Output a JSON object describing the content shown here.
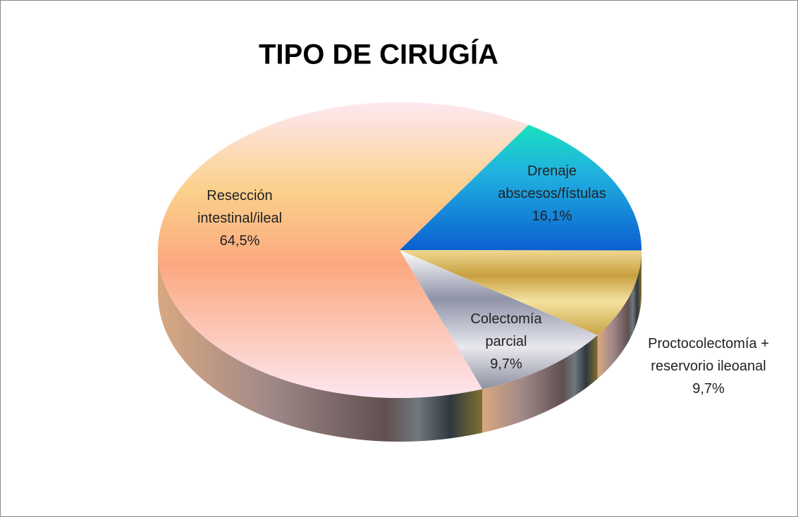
{
  "chart_data": {
    "type": "pie",
    "title": "TIPO DE CIRUGÍA",
    "categories": [
      "Resección intestinal/ileal",
      "Drenaje abscesos/fístulas",
      "Proctocolectomía + reservorio ileoanal",
      "Colectomía parcial"
    ],
    "values": [
      64.5,
      16.1,
      9.7,
      9.7
    ],
    "value_labels": [
      "64,5%",
      "16,1%",
      "9,7%",
      "9,7%"
    ],
    "colors": [
      "#fbb98a",
      "#1a78d6",
      "#d9b84e",
      "#a9acb8"
    ]
  }
}
